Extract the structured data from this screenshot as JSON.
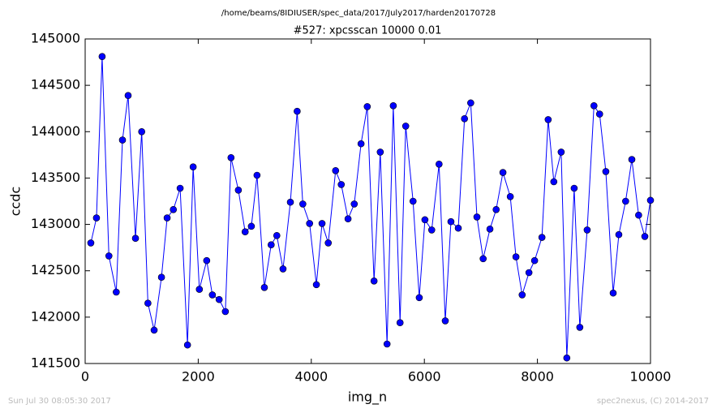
{
  "chart_data": {
    "type": "line",
    "title": "/home/beams/8IDIUSER/spec_data/2017/July2017/harden20170728",
    "subtitle": "#527: xpcsscan 10000 0.01",
    "xlabel": "img_n",
    "ylabel": "ccdc",
    "footer_left": "Sun Jul 30 08:05:30 2017",
    "footer_right": "spec2nexus, (C) 2014-2017",
    "color": "#0000ff",
    "xlim": [
      0,
      10000
    ],
    "xticks": [
      0,
      2000,
      4000,
      6000,
      8000,
      10000
    ],
    "ylim": [
      141500,
      145000
    ],
    "yticks": [
      141500,
      142000,
      142500,
      143000,
      143500,
      144000,
      144500,
      145000
    ],
    "x": [
      100,
      200,
      300,
      420,
      550,
      660,
      760,
      890,
      1000,
      1110,
      1220,
      1350,
      1450,
      1560,
      1680,
      1810,
      1910,
      2020,
      2150,
      2250,
      2370,
      2480,
      2580,
      2710,
      2830,
      2940,
      3040,
      3170,
      3290,
      3390,
      3500,
      3630,
      3750,
      3850,
      3970,
      4090,
      4190,
      4300,
      4430,
      4530,
      4650,
      4760,
      4880,
      4990,
      5110,
      5220,
      5340,
      5450,
      5570,
      5670,
      5800,
      5910,
      6010,
      6130,
      6260,
      6370,
      6470,
      6600,
      6710,
      6820,
      6930,
      7040,
      7160,
      7270,
      7390,
      7520,
      7620,
      7730,
      7850,
      7950,
      8080,
      8190,
      8290,
      8420,
      8520,
      8650,
      8750,
      8880,
      9000,
      9100,
      9210,
      9340,
      9440,
      9560,
      9670,
      9790,
      9900,
      10000
    ],
    "values": [
      142800,
      143070,
      144810,
      142660,
      142270,
      143910,
      144390,
      142850,
      144000,
      142150,
      141860,
      142430,
      143070,
      143160,
      143390,
      141700,
      143620,
      142300,
      142610,
      142240,
      142190,
      142060,
      143720,
      143370,
      142920,
      142980,
      143530,
      142320,
      142780,
      142880,
      142520,
      143240,
      144220,
      143220,
      143010,
      142350,
      143010,
      142800,
      143580,
      143430,
      143060,
      143220,
      143870,
      144270,
      142390,
      143780,
      141710,
      144280,
      141940,
      144060,
      143250,
      142210,
      143050,
      142940,
      143650,
      141960,
      143030,
      142960,
      144140,
      144310,
      143080,
      142630,
      142950,
      143160,
      143560,
      143300,
      142650,
      142240,
      142480,
      142610,
      142860,
      144130,
      143460,
      143780,
      141560,
      143390,
      141890,
      142940,
      144280,
      144190,
      143570,
      142260,
      142890,
      143250,
      143700,
      143100,
      142870,
      143260
    ]
  }
}
